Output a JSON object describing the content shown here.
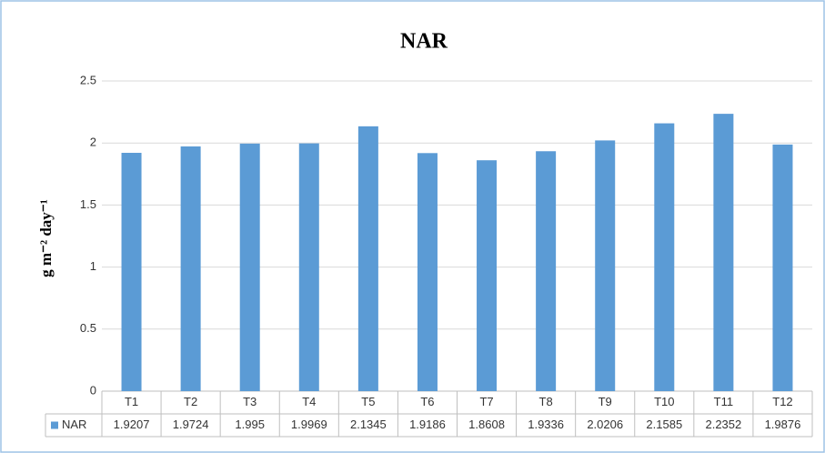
{
  "chart_data": {
    "type": "bar",
    "title": "NAR",
    "ylabel": "g m⁻² day⁻¹",
    "categories": [
      "T1",
      "T2",
      "T3",
      "T4",
      "T5",
      "T6",
      "T7",
      "T8",
      "T9",
      "T10",
      "T11",
      "T12"
    ],
    "series": [
      {
        "name": "NAR",
        "color": "#5b9bd5",
        "values": [
          1.9207,
          1.9724,
          1.995,
          1.9969,
          2.1345,
          1.9186,
          1.8608,
          1.9336,
          2.0206,
          2.1585,
          2.2352,
          1.9876
        ]
      }
    ],
    "ylim": [
      0,
      2.5
    ],
    "yticks": [
      0,
      0.5,
      1,
      1.5,
      2,
      2.5
    ],
    "grid": true,
    "data_table": true
  }
}
